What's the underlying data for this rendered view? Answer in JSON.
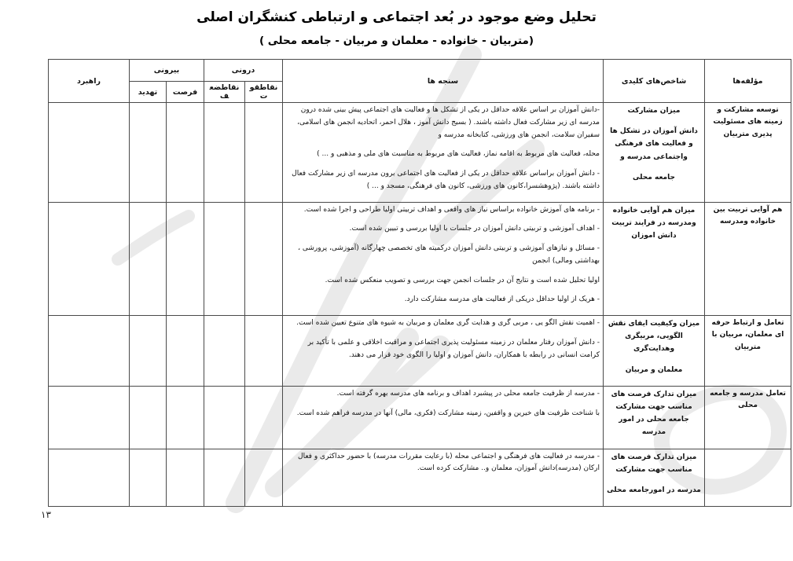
{
  "title": "تحلیل وضع موجود در بُعد اجتماعی و ارتباطی کنشگران اصلی",
  "subtitle": "(متربیان - خانواده - معلمان و مربیان - جامعه محلی )",
  "page_number": "۱۳",
  "table": {
    "headers": {
      "moalefe": "مؤلفه‌ها",
      "shakhes": "شاخص‌های کلیدی",
      "sanje": "سنجه ها",
      "internal": "درونی",
      "external": "بیرونی",
      "strengths": "نقاطقوت",
      "weaknesses": "نقاطضعف",
      "opportunity": "فرصت",
      "threat": "تهدید",
      "strategy": "راهبرد"
    },
    "rows": [
      {
        "moalefe": [
          "توسعه مشارکت و زمینه های مسئولیت پذیری متربیان"
        ],
        "shakhes": [
          "میزان مشارکت",
          "دانش آموزان در تشکل ها و فعالیت های فرهنگی واجتماعی مدرسه و",
          "جامعه محلی"
        ],
        "sanje": [
          "-دانش آموزان بر اساس علاقه حداقل در یکی از تشکل ها و فعالیت های اجتماعی پیش بینی شده درون مدرسه ای زیر مشارکت فعال داشته باشند. ( بسیج دانش آموز ، هلال احمر، اتحادیه انجمن های اسلامی، سفیران سلامت، انجمن های ورزشی، کتابخانه مدرسه و",
          "محله، فعالیت های مربوط به اقامه نماز، فعالیت های مربوط به مناسبت های ملی و مذهبی و ... )",
          "- دانش آموزان براساس علاقه حداقل در یکی از فعالیت های اجتماعی برون مدرسه ای زیر مشارکت فعال داشته باشند. (پژوهشسرا،کانون های ورزشی، کانون های فرهنگی، مسجد و ... )"
        ]
      },
      {
        "moalefe": [
          "هم آوایی تربیت بین خانواده ومدرسه"
        ],
        "shakhes": [
          "میزان هم آوایی خانواده ومدرسه در فرایند تربیت دانش اموزان"
        ],
        "sanje": [
          "- برنامه های آموزش خانواده براساس نیاز های واقعی و اهداف تربیتی اولیا طراحی و اجرا شده است.",
          "- اهداف آموزشی و تربیتی دانش آموزان در جلسات با اولیا بررسی و تبیین شده است.",
          "- مسائل و نیازهای آموزشی و تربیتی دانش آموزان درکمیته های تخصصی چهارگانه (آموزشی، پرورشی ، بهداشتی ومالی) انجمن",
          "اولیا تحلیل شده است و نتایج آن در جلسات انجمن جهت بررسی و تصویب منعکس شده است.",
          "- هریک از اولیا حداقل دریکی از فعالیت های مدرسه مشارکت دارد."
        ]
      },
      {
        "moalefe": [
          "تعامل و ارتباط حرفه ای معلمان، مربیان با متربیان"
        ],
        "shakhes": [
          "میزان وکیفیت ایفای نقش الگویی، مربیگری وهدایت‌گری",
          "معلمان و مربیان"
        ],
        "sanje": [
          "- اهمیت نقش الگو یی ، مربی گری و هدایت گری معلمان و مربیان به شیوه های متنوع تعیین شده است.",
          "- دانش آموزان رفتار معلمان در زمینه مسئولیت پذیری اجتماعی و مراقبت اخلاقی و علمی با تأکید بر کرامت انسانی در رابطه با همکاران، دانش آموزان و اولیا را الگوی خود قرار می دهند."
        ]
      },
      {
        "moalefe": [
          "تعامل مدرسه و جامعه محلی"
        ],
        "shakhes": [
          "میزان تدارک فرصت های مناسب جهت مشارکت جامعه محلی در امور مدرسه"
        ],
        "sanje": [
          "- مدرسه از ظرفیت جامعه محلی در پیشبرد اهداف و برنامه های مدرسه بهره گرفته است.",
          "با شناخت ظرفیت های خیرین و واقفین، زمینه مشارکت (فکری، مالی) آنها در مدرسه فراهم شده است."
        ]
      },
      {
        "moalefe": [],
        "shakhes": [
          "میزان تدارک فرصت های مناسب جهت مشارکت",
          "مدرسه در امورجامعه محلی"
        ],
        "sanje": [
          "- مدرسه در فعالیت های فرهنگی و اجتماعی محله (با رعایت مقررات مدرسه) با حضور حداکثری و فعال ارکان (مدرسه)دانش آموزان، معلمان و.. مشارکت کرده است."
        ]
      }
    ]
  },
  "watermark_color": "#e3e3e3"
}
